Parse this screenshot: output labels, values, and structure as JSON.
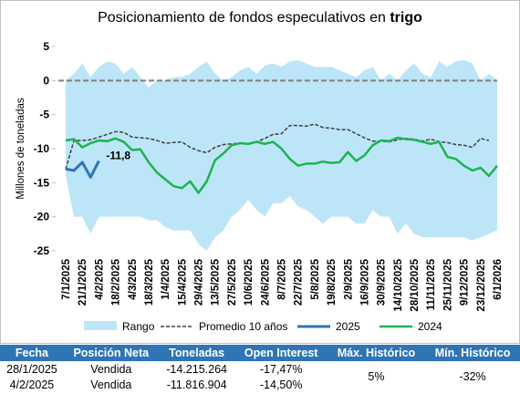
{
  "chart_data": {
    "type": "line",
    "title": "Posicionamiento de fondos especulativos en",
    "title_emphasis": "trigo",
    "y_label": "Millones de toneladas",
    "ylim": [
      -25,
      5
    ],
    "yticks": [
      5,
      0,
      -5,
      -10,
      -15,
      -20,
      -25
    ],
    "zero_line": true,
    "legend": "bottom",
    "categories": [
      "7/1/2025",
      null,
      "21/1/2025",
      null,
      "4/2/2025",
      null,
      "18/2/2025",
      null,
      "4/3/2025",
      null,
      "18/3/2025",
      null,
      "1/4/2025",
      null,
      "15/4/2025",
      null,
      "29/4/2025",
      null,
      "13/5/2025",
      null,
      "27/5/2025",
      null,
      "10/6/2025",
      null,
      "24/6/2025",
      null,
      "8/7/2025",
      null,
      "22/7/2025",
      null,
      "5/8/2025",
      null,
      "19/8/2025",
      null,
      "2/9/2025",
      null,
      "16/9/2025",
      null,
      "30/9/2025",
      null,
      "14/10/2025",
      null,
      "28/10/2025",
      null,
      "11/11/2025",
      null,
      "25/11/2025",
      null,
      "9/12/2025",
      null,
      "23/12/2025",
      null,
      "6/1/2026"
    ],
    "series": [
      {
        "name": "Rango",
        "type": "area",
        "color": "#bde5f8",
        "high": [
          0,
          1,
          2.5,
          0.5,
          2,
          2.8,
          2.5,
          1,
          2,
          0.5,
          -1,
          0,
          0,
          0.5,
          0.5,
          1,
          2,
          2.8,
          1,
          0,
          0.5,
          1.5,
          2,
          1,
          2.2,
          2.5,
          2,
          2.8,
          3,
          2.5,
          2,
          2,
          2,
          1.5,
          1,
          0.5,
          1.5,
          2,
          0,
          1,
          0,
          1.5,
          2.5,
          1,
          0.5,
          2.8,
          2,
          2.8,
          3,
          2.5,
          0,
          1,
          0
        ],
        "low": [
          -14,
          -20,
          -20,
          -22.5,
          -20,
          -20,
          -20,
          -20,
          -20,
          -20,
          -20.5,
          -20.5,
          -21.5,
          -22,
          -22,
          -22,
          -24,
          -25,
          -23,
          -22,
          -20,
          -19,
          -17.5,
          -19,
          -20,
          -18,
          -18,
          -17,
          -18.5,
          -19,
          -20,
          -21,
          -20,
          -20,
          -20,
          -21,
          -21,
          -19,
          -20,
          -20,
          -22.5,
          -21,
          -22.5,
          -23,
          -23,
          -23,
          -23,
          -23,
          -23,
          -23.5,
          -23,
          -22.5,
          -22
        ]
      },
      {
        "name": "Promedio 10 años",
        "type": "line",
        "color": "#404040",
        "dashed": true,
        "width": 1.5,
        "values": [
          -13,
          -8.8,
          -8.8,
          -8.7,
          -8.3,
          -7.9,
          -7.5,
          -7.6,
          -8.3,
          -8.4,
          -8.5,
          -8.8,
          -9.2,
          -9.1,
          -9.0,
          -9.8,
          -10.3,
          -10.6,
          -9.8,
          -9.4,
          -9.3,
          -9.2,
          -9.3,
          -9.0,
          -8.5,
          -7.9,
          -7.8,
          -6.6,
          -6.6,
          -6.7,
          -6.4,
          -6.9,
          -7.0,
          -7.2,
          -7.2,
          -7.8,
          -8.4,
          -8.9,
          -8.9,
          -9.0,
          -8.7,
          -8.5,
          -8.6,
          -8.9,
          -8.6,
          -9.0,
          -9.1,
          -9.4,
          -9.5,
          -9.8,
          -8.5,
          -8.8,
          null
        ]
      },
      {
        "name": "2025",
        "type": "line",
        "color": "#2e75b6",
        "width": 3,
        "values": [
          -13,
          -13.2,
          -12,
          -14.2,
          -11.8,
          null,
          null,
          null,
          null,
          null,
          null,
          null,
          null,
          null,
          null,
          null,
          null,
          null,
          null,
          null,
          null,
          null,
          null,
          null,
          null,
          null,
          null,
          null,
          null,
          null,
          null,
          null,
          null,
          null,
          null,
          null,
          null,
          null,
          null,
          null,
          null,
          null,
          null,
          null,
          null,
          null,
          null,
          null,
          null,
          null,
          null,
          null,
          null
        ],
        "value_labels": [
          null,
          null,
          null,
          null,
          "-11,8",
          null,
          null,
          null,
          null,
          null,
          null,
          null,
          null,
          null,
          null,
          null,
          null,
          null,
          null,
          null,
          null,
          null,
          null,
          null,
          null,
          null,
          null,
          null,
          null,
          null,
          null,
          null,
          null,
          null,
          null,
          null,
          null,
          null,
          null,
          null,
          null,
          null,
          null,
          null,
          null,
          null,
          null,
          null,
          null,
          null,
          null,
          null,
          null
        ]
      },
      {
        "name": "2024",
        "type": "line",
        "color": "#1db34e",
        "width": 2.5,
        "values": [
          -8.8,
          -8.6,
          -9.8,
          -9.2,
          -8.8,
          -8.9,
          -8.5,
          -9.0,
          -10.2,
          -10.1,
          -12.0,
          -13.5,
          -14.5,
          -15.5,
          -15.8,
          -14.8,
          -16.5,
          -14.8,
          -11.7,
          -10.7,
          -9.5,
          -9.2,
          -9.3,
          -9.0,
          -9.3,
          -9.0,
          -10.0,
          -11.5,
          -12.5,
          -12.2,
          -12.2,
          -11.9,
          -12.1,
          -12.0,
          -10.5,
          -11.8,
          -11.0,
          -9.5,
          -8.8,
          -8.9,
          -8.4,
          -8.6,
          -8.7,
          -9.0,
          -9.3,
          -9.0,
          -11.2,
          -11.5,
          -12.5,
          -13.2,
          -12.8,
          -14.0,
          -12.5
        ]
      }
    ]
  },
  "table": {
    "header": [
      "Fecha",
      "Posición Neta",
      "Toneladas",
      "Open Interest",
      "Máx. Histórico",
      "Mín. Histórico"
    ],
    "rows": [
      [
        "28/1/2025",
        "Vendida",
        "-14.215.264",
        "-17,47%"
      ],
      [
        "4/2/2025",
        "Vendida",
        "-11.816.904",
        "-14,50%"
      ]
    ],
    "max": "5%",
    "min": "-32%"
  }
}
